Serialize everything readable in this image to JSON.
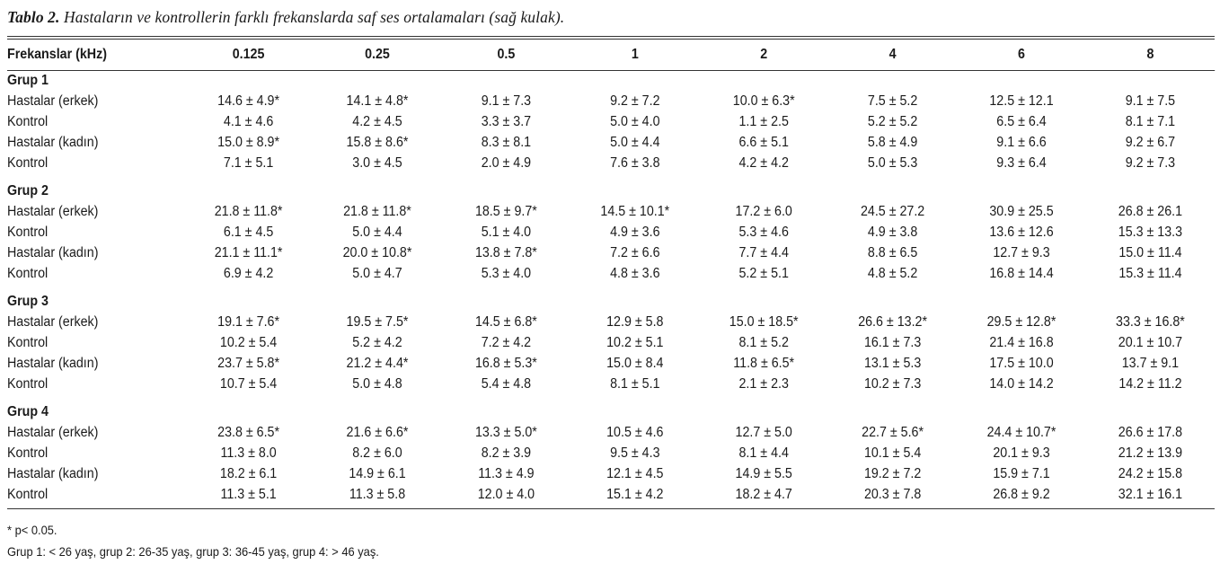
{
  "caption": {
    "label": "Tablo 2.",
    "text": " Hastaların ve kontrollerin farklı frekanslarda saf ses ortalamaları (sağ kulak)."
  },
  "table": {
    "headers": [
      "Frekanslar (kHz)",
      "0.125",
      "0.25",
      "0.5",
      "1",
      "2",
      "4",
      "6",
      "8"
    ],
    "groups": [
      {
        "name": "Grup 1",
        "rows": [
          {
            "label": "Hastalar (erkek)",
            "values": [
              "14.6 ± 4.9*",
              "14.1 ± 4.8*",
              "9.1 ± 7.3",
              "9.2 ± 7.2",
              "10.0 ± 6.3*",
              "7.5 ± 5.2",
              "12.5 ± 12.1",
              "9.1 ± 7.5"
            ]
          },
          {
            "label": "Kontrol",
            "values": [
              "4.1 ± 4.6",
              "4.2 ± 4.5",
              "3.3 ± 3.7",
              "5.0 ± 4.0",
              "1.1 ± 2.5",
              "5.2 ± 5.2",
              "6.5 ± 6.4",
              "8.1 ± 7.1"
            ]
          },
          {
            "label": "Hastalar (kadın)",
            "values": [
              "15.0 ± 8.9*",
              "15.8 ± 8.6*",
              "8.3 ± 8.1",
              "5.0 ± 4.4",
              "6.6 ± 5.1",
              "5.8 ± 4.9",
              "9.1 ± 6.6",
              "9.2 ± 6.7"
            ]
          },
          {
            "label": "Kontrol",
            "values": [
              "7.1 ± 5.1",
              "3.0 ± 4.5",
              "2.0 ± 4.9",
              "7.6 ± 3.8",
              "4.2 ± 4.2",
              "5.0 ± 5.3",
              "9.3 ± 6.4",
              "9.2 ± 7.3"
            ]
          }
        ]
      },
      {
        "name": "Grup 2",
        "rows": [
          {
            "label": "Hastalar (erkek)",
            "values": [
              "21.8 ± 11.8*",
              "21.8 ± 11.8*",
              "18.5 ± 9.7*",
              "14.5 ± 10.1*",
              "17.2 ± 6.0",
              "24.5 ± 27.2",
              "30.9 ± 25.5",
              "26.8 ± 26.1"
            ]
          },
          {
            "label": "Kontrol",
            "values": [
              "6.1 ± 4.5",
              "5.0 ± 4.4",
              "5.1 ± 4.0",
              "4.9 ± 3.6",
              "5.3 ± 4.6",
              "4.9 ± 3.8",
              "13.6 ± 12.6",
              "15.3 ± 13.3"
            ]
          },
          {
            "label": "Hastalar (kadın)",
            "values": [
              "21.1 ± 11.1*",
              "20.0 ± 10.8*",
              "13.8 ± 7.8*",
              "7.2 ± 6.6",
              "7.7 ± 4.4",
              "8.8 ± 6.5",
              "12.7 ± 9.3",
              "15.0 ± 11.4"
            ]
          },
          {
            "label": "Kontrol",
            "values": [
              "6.9 ± 4.2",
              "5.0 ± 4.7",
              "5.3 ± 4.0",
              "4.8 ± 3.6",
              "5.2 ± 5.1",
              "4.8 ± 5.2",
              "16.8 ± 14.4",
              "15.3 ± 11.4"
            ]
          }
        ]
      },
      {
        "name": "Grup 3",
        "rows": [
          {
            "label": "Hastalar (erkek)",
            "values": [
              "19.1 ± 7.6*",
              "19.5 ± 7.5*",
              "14.5 ± 6.8*",
              "12.9 ± 5.8",
              "15.0 ± 18.5*",
              "26.6 ± 13.2*",
              "29.5 ± 12.8*",
              "33.3 ± 16.8*"
            ]
          },
          {
            "label": "Kontrol",
            "values": [
              "10.2 ± 5.4",
              "5.2 ± 4.2",
              "7.2 ± 4.2",
              "10.2 ± 5.1",
              "8.1 ± 5.2",
              "16.1 ± 7.3",
              "21.4 ± 16.8",
              "20.1 ± 10.7"
            ]
          },
          {
            "label": "Hastalar (kadın)",
            "values": [
              "23.7 ± 5.8*",
              "21.2 ± 4.4*",
              "16.8 ± 5.3*",
              "15.0 ± 8.4",
              "11.8 ± 6.5*",
              "13.1 ± 5.3",
              "17.5 ± 10.0",
              "13.7 ± 9.1"
            ]
          },
          {
            "label": "Kontrol",
            "values": [
              "10.7 ± 5.4",
              "5.0 ± 4.8",
              "5.4 ± 4.8",
              "8.1 ± 5.1",
              "2.1 ± 2.3",
              "10.2 ± 7.3",
              "14.0 ± 14.2",
              "14.2 ± 11.2"
            ]
          }
        ]
      },
      {
        "name": "Grup 4",
        "rows": [
          {
            "label": "Hastalar (erkek)",
            "values": [
              "23.8 ± 6.5*",
              "21.6 ± 6.6*",
              "13.3 ± 5.0*",
              "10.5 ± 4.6",
              "12.7 ± 5.0",
              "22.7 ± 5.6*",
              "24.4 ± 10.7*",
              "26.6 ± 17.8"
            ]
          },
          {
            "label": "Kontrol",
            "values": [
              "11.3 ± 8.0",
              "8.2 ± 6.0",
              "8.2 ± 3.9",
              "9.5 ± 4.3",
              "8.1 ± 4.4",
              "10.1 ± 5.4",
              "20.1 ± 9.3",
              "21.2 ± 13.9"
            ]
          },
          {
            "label": "Hastalar (kadın)",
            "values": [
              "18.2 ± 6.1",
              "14.9 ± 6.1",
              "11.3 ± 4.9",
              "12.1 ± 4.5",
              "14.9 ± 5.5",
              "19.2 ± 7.2",
              "15.9 ± 7.1",
              "24.2 ± 15.8"
            ]
          },
          {
            "label": "Kontrol",
            "values": [
              "11.3 ± 5.1",
              "11.3 ± 5.8",
              "12.0 ± 4.0",
              "15.1 ± 4.2",
              "18.2 ± 4.7",
              "20.3 ± 7.8",
              "26.8 ± 9.2",
              "32.1 ± 16.1"
            ]
          }
        ]
      }
    ]
  },
  "footnotes": {
    "significance": "* p< 0.05.",
    "groups": "Grup 1: < 26 yaş, grup 2: 26-35 yaş, grup 3: 36-45 yaş, grup 4: > 46 yaş."
  }
}
